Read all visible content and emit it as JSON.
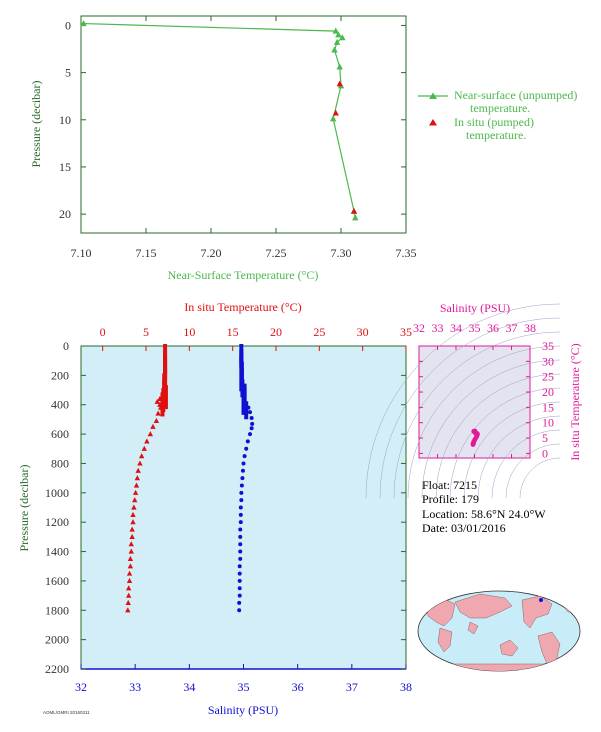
{
  "colors": {
    "near_surface": "#4db84d",
    "temperature": "#e01010",
    "salinity": "#1010d0",
    "ts": "#e01a9a",
    "axis_green": "#2a6a2a",
    "plot_bg": "#d4eef8",
    "land": "#f0a8b0",
    "ocean": "#c8ecf8"
  },
  "footer_code": "AOML/GMRI 20160311",
  "float_info": {
    "float": "Float:  7215",
    "profile": "Profile:  179",
    "location": "Location:  58.6°N  24.0°W",
    "date": "Date:  03/01/2016"
  },
  "chart_data": [
    {
      "id": "near_surface",
      "type": "line",
      "xlabel": "Near-Surface Temperature (°C)",
      "ylabel": "Pressure (decibar)",
      "xlim": [
        7.1,
        7.35
      ],
      "ylim": [
        22,
        -1
      ],
      "xticks": [
        "7.10",
        "7.15",
        "7.20",
        "7.25",
        "7.30",
        "7.35"
      ],
      "xtick_values": [
        7.1,
        7.15,
        7.2,
        7.25,
        7.3,
        7.35
      ],
      "yticks": [
        "0",
        "5",
        "10",
        "15",
        "20"
      ],
      "ytick_values": [
        0,
        5,
        10,
        15,
        20
      ],
      "legend": {
        "placement": "right",
        "series1_line1": "Near-surface (unpumped)",
        "series1_line2": "temperature.",
        "series2_line1": "In situ (pumped)",
        "series2_line2": "temperature."
      },
      "series": [
        {
          "name": "Near-surface (unpumped) temperature.",
          "marker": "triangle-line",
          "points": [
            [
              7.102,
              -0.2
            ],
            [
              7.296,
              0.6
            ],
            [
              7.298,
              1.0
            ],
            [
              7.301,
              1.3
            ],
            [
              7.297,
              1.8
            ],
            [
              7.295,
              2.6
            ],
            [
              7.299,
              4.4
            ],
            [
              7.3,
              6.4
            ],
            [
              7.294,
              9.9
            ],
            [
              7.31,
              19.7
            ],
            [
              7.311,
              20.4
            ]
          ]
        },
        {
          "name": "In situ (pumped) temperature.",
          "marker": "triangle",
          "points": [
            [
              7.299,
              6.2
            ],
            [
              7.296,
              9.3
            ],
            [
              7.31,
              19.7
            ]
          ]
        }
      ]
    },
    {
      "id": "profile",
      "type": "scatter",
      "top_xlabel": "In situ Temperature (°C)",
      "bottom_xlabel": "Salinity (PSU)",
      "ylabel": "Pressure (decibar)",
      "temp_xlim": [
        -2.5,
        35
      ],
      "temp_xticks": [
        "0",
        "5",
        "10",
        "15",
        "20",
        "25",
        "30",
        "35"
      ],
      "temp_xtick_values": [
        0,
        5,
        10,
        15,
        20,
        25,
        30,
        35
      ],
      "sal_xlim": [
        32,
        38
      ],
      "sal_xticks": [
        "32",
        "33",
        "34",
        "35",
        "36",
        "37",
        "38"
      ],
      "sal_xtick_values": [
        32,
        33,
        34,
        35,
        36,
        37,
        38
      ],
      "ylim": [
        2200,
        0
      ],
      "yticks": [
        "0",
        "200",
        "400",
        "600",
        "800",
        "1000",
        "1200",
        "1400",
        "1600",
        "1800",
        "2000",
        "2200"
      ],
      "ytick_values": [
        0,
        200,
        400,
        600,
        800,
        1000,
        1200,
        1400,
        1600,
        1800,
        2000,
        2200
      ],
      "temperature": [
        [
          7.2,
          0
        ],
        [
          7.2,
          40
        ],
        [
          7.2,
          80
        ],
        [
          7.2,
          120
        ],
        [
          7.2,
          160
        ],
        [
          7.1,
          200
        ],
        [
          7.1,
          240
        ],
        [
          7.3,
          280
        ],
        [
          7.0,
          300
        ],
        [
          6.9,
          330
        ],
        [
          6.6,
          360
        ],
        [
          6.3,
          380
        ],
        [
          6.6,
          400
        ],
        [
          6.7,
          420
        ],
        [
          6.4,
          460
        ],
        [
          6.2,
          510
        ],
        [
          5.8,
          550
        ],
        [
          5.5,
          600
        ],
        [
          5.1,
          650
        ],
        [
          4.8,
          700
        ],
        [
          4.5,
          750
        ],
        [
          4.3,
          800
        ],
        [
          4.1,
          850
        ],
        [
          4.0,
          900
        ],
        [
          3.9,
          950
        ],
        [
          3.8,
          1000
        ],
        [
          3.7,
          1050
        ],
        [
          3.6,
          1100
        ],
        [
          3.5,
          1150
        ],
        [
          3.5,
          1200
        ],
        [
          3.4,
          1250
        ],
        [
          3.4,
          1300
        ],
        [
          3.3,
          1350
        ],
        [
          3.3,
          1400
        ],
        [
          3.2,
          1450
        ],
        [
          3.2,
          1500
        ],
        [
          3.1,
          1550
        ],
        [
          3.1,
          1600
        ],
        [
          3.0,
          1650
        ],
        [
          3.0,
          1700
        ],
        [
          2.95,
          1750
        ],
        [
          2.9,
          1800
        ]
      ],
      "salinity": [
        [
          34.96,
          0
        ],
        [
          34.96,
          40
        ],
        [
          34.96,
          80
        ],
        [
          34.97,
          120
        ],
        [
          34.97,
          160
        ],
        [
          34.96,
          200
        ],
        [
          34.98,
          240
        ],
        [
          35.02,
          270
        ],
        [
          35.02,
          300
        ],
        [
          35.0,
          330
        ],
        [
          35.0,
          360
        ],
        [
          35.05,
          390
        ],
        [
          35.09,
          420
        ],
        [
          35.12,
          450
        ],
        [
          35.15,
          490
        ],
        [
          35.16,
          530
        ],
        [
          35.15,
          560
        ],
        [
          35.12,
          600
        ],
        [
          35.08,
          650
        ],
        [
          35.05,
          700
        ],
        [
          35.02,
          750
        ],
        [
          35.0,
          800
        ],
        [
          34.99,
          850
        ],
        [
          34.98,
          900
        ],
        [
          34.97,
          950
        ],
        [
          34.96,
          1000
        ],
        [
          34.96,
          1050
        ],
        [
          34.95,
          1100
        ],
        [
          34.95,
          1150
        ],
        [
          34.95,
          1200
        ],
        [
          34.94,
          1250
        ],
        [
          34.94,
          1300
        ],
        [
          34.94,
          1350
        ],
        [
          34.94,
          1400
        ],
        [
          34.94,
          1450
        ],
        [
          34.93,
          1500
        ],
        [
          34.93,
          1550
        ],
        [
          34.93,
          1600
        ],
        [
          34.93,
          1650
        ],
        [
          34.93,
          1700
        ],
        [
          34.92,
          1750
        ],
        [
          34.92,
          1800
        ]
      ]
    },
    {
      "id": "ts",
      "type": "scatter",
      "title": "Salinity (PSU)",
      "ylabel": "In situ Temperature (°C)",
      "xlim": [
        32,
        38
      ],
      "ylim": [
        -1.5,
        35
      ],
      "xticks": [
        "32",
        "33",
        "34",
        "35",
        "36",
        "37",
        "38"
      ],
      "xtick_values": [
        32,
        33,
        34,
        35,
        36,
        37,
        38
      ],
      "yticks": [
        "0",
        "5",
        "10",
        "15",
        "20",
        "25",
        "30",
        "35"
      ],
      "ytick_values": [
        0,
        5,
        10,
        15,
        20,
        25,
        30,
        35
      ],
      "points": [
        [
          34.92,
          2.9
        ],
        [
          34.93,
          3.1
        ],
        [
          34.94,
          3.4
        ],
        [
          34.95,
          3.6
        ],
        [
          34.97,
          3.9
        ],
        [
          35.0,
          4.3
        ],
        [
          35.05,
          4.8
        ],
        [
          35.12,
          5.5
        ],
        [
          35.16,
          6.2
        ],
        [
          35.15,
          6.4
        ],
        [
          35.09,
          6.7
        ],
        [
          35.02,
          7.0
        ],
        [
          35.02,
          7.3
        ],
        [
          34.98,
          7.1
        ],
        [
          34.96,
          7.2
        ],
        [
          34.97,
          7.2
        ],
        [
          35.05,
          6.6
        ],
        [
          35.12,
          5.8
        ]
      ]
    }
  ]
}
